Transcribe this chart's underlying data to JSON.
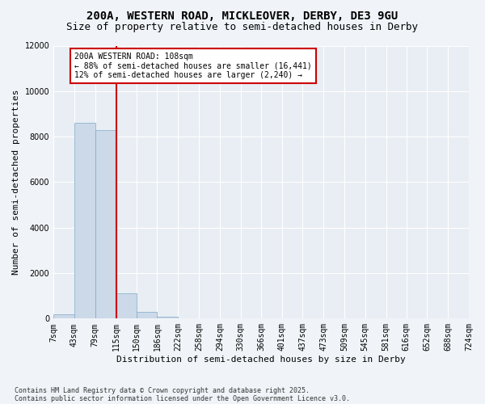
{
  "title_line1": "200A, WESTERN ROAD, MICKLEOVER, DERBY, DE3 9GU",
  "title_line2": "Size of property relative to semi-detached houses in Derby",
  "xlabel": "Distribution of semi-detached houses by size in Derby",
  "ylabel": "Number of semi-detached properties",
  "footnote1": "Contains HM Land Registry data © Crown copyright and database right 2025.",
  "footnote2": "Contains public sector information licensed under the Open Government Licence v3.0.",
  "annotation_title": "200A WESTERN ROAD: 108sqm",
  "annotation_line2": "← 88% of semi-detached houses are smaller (16,441)",
  "annotation_line3": "12% of semi-detached houses are larger (2,240) →",
  "bin_edges": [
    7,
    43,
    79,
    115,
    150,
    186,
    222,
    258,
    294,
    330,
    366,
    401,
    437,
    473,
    509,
    545,
    581,
    616,
    652,
    688,
    724
  ],
  "bin_counts": [
    200,
    8600,
    8300,
    1100,
    300,
    100,
    20,
    5,
    2,
    1,
    0,
    0,
    0,
    0,
    0,
    0,
    0,
    0,
    0,
    0
  ],
  "bar_color": "#ccd9e8",
  "bar_edge_color": "#7fa8c8",
  "vline_color": "#cc0000",
  "vline_x": 115,
  "annotation_box_color": "#cc0000",
  "ylim": [
    0,
    12000
  ],
  "yticks": [
    0,
    2000,
    4000,
    6000,
    8000,
    10000,
    12000
  ],
  "background_color": "#f0f4f8",
  "plot_bg_color": "#e8eef4",
  "grid_color": "#ffffff",
  "title_fontsize": 10,
  "subtitle_fontsize": 9,
  "axis_label_fontsize": 8,
  "tick_fontsize": 7,
  "annotation_fontsize": 7,
  "footnote_fontsize": 6
}
